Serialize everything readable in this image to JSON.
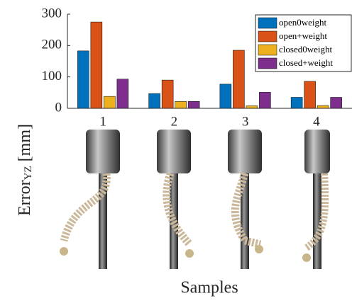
{
  "chart_data": {
    "type": "bar",
    "categories": [
      "1",
      "2",
      "3",
      "4"
    ],
    "series": [
      {
        "name": "open0weight",
        "color": "#0072BD",
        "values": [
          183,
          47,
          77,
          35
        ]
      },
      {
        "name": "open+weight",
        "color": "#D95319",
        "values": [
          275,
          90,
          185,
          86
        ]
      },
      {
        "name": "closed0weight",
        "color": "#EDB120",
        "values": [
          38,
          22,
          8,
          9
        ]
      },
      {
        "name": "closed+weight",
        "color": "#7E2F8E",
        "values": [
          93,
          22,
          51,
          35
        ]
      }
    ],
    "ylim": [
      0,
      300
    ],
    "yticks": [
      0,
      100,
      200,
      300
    ],
    "y_label": "Error",
    "y_label_sub": "YZ",
    "y_label_unit": "[mm]",
    "x_label": "Samples",
    "legend": "upper right"
  }
}
